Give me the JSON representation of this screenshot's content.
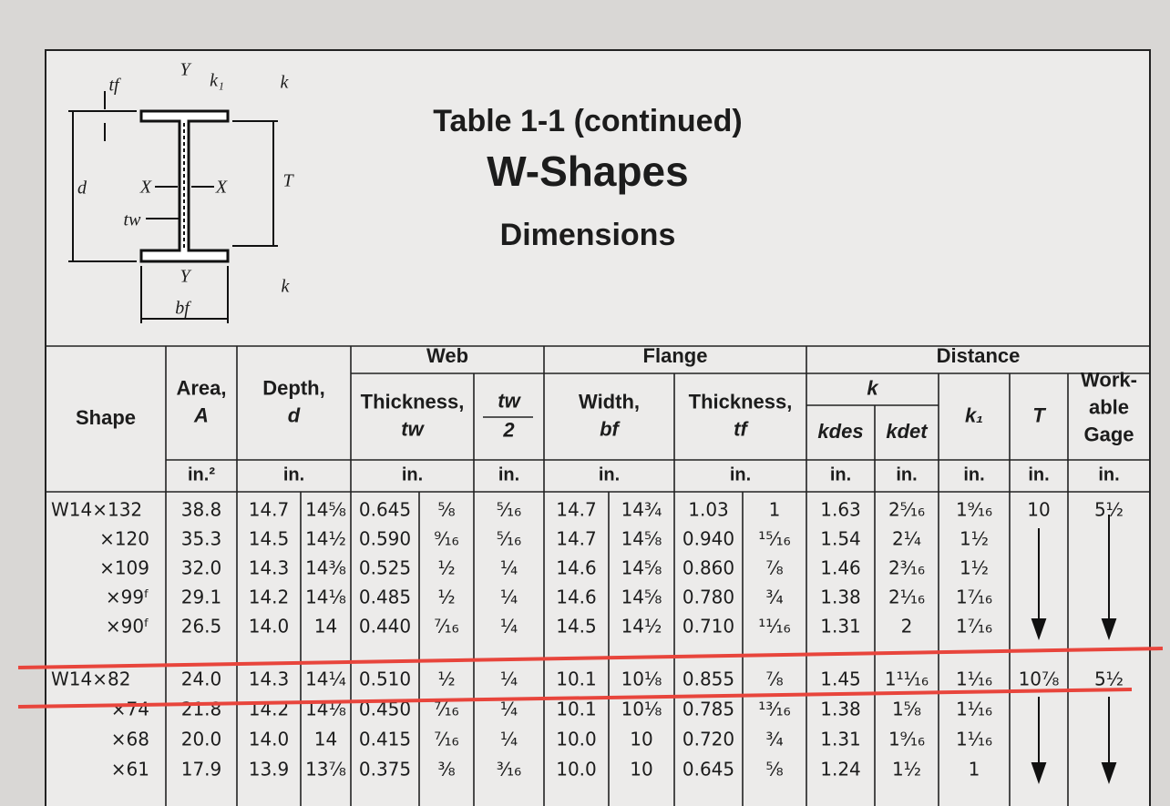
{
  "header": {
    "title": "Table 1-1 (continued)",
    "subtitle": "W-Shapes",
    "caption": "Dimensions"
  },
  "diagram": {
    "labels": [
      "tf",
      "Y",
      "k₁",
      "k",
      "d",
      "X",
      "X",
      "T",
      "tw",
      "Y",
      "k",
      "bf"
    ]
  },
  "table": {
    "groups": [
      "Web",
      "Flange",
      "Distance"
    ],
    "headers": [
      [
        "Shape"
      ],
      [
        "Area,",
        "A"
      ],
      [
        "Depth,",
        "d"
      ],
      [
        "Thickness,",
        "tw"
      ],
      [
        "tw",
        "2"
      ],
      [
        "Width,",
        "bf"
      ],
      [
        "Thickness,",
        "tf"
      ],
      [
        "k"
      ],
      [
        "kdes"
      ],
      [
        "kdet"
      ],
      [
        "k₁"
      ],
      [
        "T"
      ],
      [
        "Work-",
        "able",
        "Gage"
      ]
    ],
    "units": [
      "in.²",
      "in.",
      "in.",
      "in.",
      "in.",
      "in.",
      "in.",
      "in.",
      "in.",
      "in.",
      "in."
    ],
    "rows": [
      [
        "W14×132",
        "38.8",
        "14.7",
        "14⁵⁄₈",
        "0.645",
        "⁵⁄₈",
        "⁵⁄₁₆",
        "14.7",
        "14³⁄₄",
        "1.03",
        "1",
        "1.63",
        "2⁵⁄₁₆",
        "1⁹⁄₁₆",
        "10",
        "5¹⁄₂"
      ],
      [
        "×120",
        "35.3",
        "14.5",
        "14¹⁄₂",
        "0.590",
        "⁹⁄₁₆",
        "⁵⁄₁₆",
        "14.7",
        "14⁵⁄₈",
        "0.940",
        "¹⁵⁄₁₆",
        "1.54",
        "2¹⁄₄",
        "1¹⁄₂",
        null,
        null
      ],
      [
        "×109",
        "32.0",
        "14.3",
        "14³⁄₈",
        "0.525",
        "¹⁄₂",
        "¹⁄₄",
        "14.6",
        "14⁵⁄₈",
        "0.860",
        "⁷⁄₈",
        "1.46",
        "2³⁄₁₆",
        "1¹⁄₂",
        null,
        null
      ],
      [
        "×99ᶠ",
        "29.1",
        "14.2",
        "14¹⁄₈",
        "0.485",
        "¹⁄₂",
        "¹⁄₄",
        "14.6",
        "14⁵⁄₈",
        "0.780",
        "³⁄₄",
        "1.38",
        "2¹⁄₁₆",
        "1⁷⁄₁₆",
        null,
        null
      ],
      [
        "×90ᶠ",
        "26.5",
        "14.0",
        "14",
        "0.440",
        "⁷⁄₁₆",
        "¹⁄₄",
        "14.5",
        "14¹⁄₂",
        "0.710",
        "¹¹⁄₁₆",
        "1.31",
        "2",
        "1⁷⁄₁₆",
        null,
        null
      ],
      [
        "W14×82",
        "24.0",
        "14.3",
        "14¹⁄₄",
        "0.510",
        "¹⁄₂",
        "¹⁄₄",
        "10.1",
        "10¹⁄₈",
        "0.855",
        "⁷⁄₈",
        "1.45",
        "1¹¹⁄₁₆",
        "1¹⁄₁₆",
        "10⁷⁄₈",
        "5¹⁄₂"
      ],
      [
        "×74",
        "21.8",
        "14.2",
        "14¹⁄₈",
        "0.450",
        "⁷⁄₁₆",
        "¹⁄₄",
        "10.1",
        "10¹⁄₈",
        "0.785",
        "¹³⁄₁₆",
        "1.38",
        "1⁵⁄₈",
        "1¹⁄₁₆",
        null,
        null
      ],
      [
        "×68",
        "20.0",
        "14.0",
        "14",
        "0.415",
        "⁷⁄₁₆",
        "¹⁄₄",
        "10.0",
        "10",
        "0.720",
        "³⁄₄",
        "1.31",
        "1⁹⁄₁₆",
        "1¹⁄₁₆",
        null,
        null
      ],
      [
        "×61",
        "17.9",
        "13.9",
        "13⁷⁄₈",
        "0.375",
        "³⁄₈",
        "³⁄₁₆",
        "10.0",
        "10",
        "0.645",
        "⁵⁄₈",
        "1.24",
        "1¹⁄₂",
        "1",
        null,
        null
      ]
    ]
  }
}
